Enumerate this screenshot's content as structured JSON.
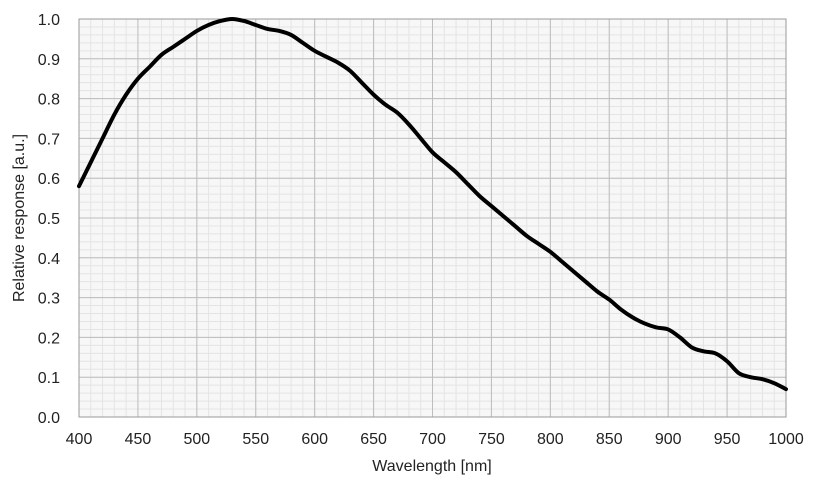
{
  "chart_data": {
    "type": "line",
    "title": "",
    "xlabel": "Wavelength [nm]",
    "ylabel": "Relative response [a.u.]",
    "xlim": [
      400,
      1000
    ],
    "ylim": [
      0.0,
      1.0
    ],
    "grid": true,
    "legend": "none",
    "x_ticks": [
      400,
      450,
      500,
      550,
      600,
      650,
      700,
      750,
      800,
      850,
      900,
      950,
      1000
    ],
    "x_tick_labels": [
      "400",
      "450",
      "500",
      "550",
      "600",
      "650",
      "700",
      "750",
      "800",
      "850",
      "900",
      "950",
      "1000"
    ],
    "y_ticks": [
      0.0,
      0.1,
      0.2,
      0.3,
      0.4,
      0.5,
      0.6,
      0.7,
      0.8,
      0.9,
      1.0
    ],
    "y_tick_labels": [
      "0.0",
      "0.1",
      "0.2",
      "0.3",
      "0.4",
      "0.5",
      "0.6",
      "0.7",
      "0.8",
      "0.9",
      "1.0"
    ],
    "line_color": "#000000",
    "series": [
      {
        "x": [
          400,
          410,
          420,
          430,
          440,
          450,
          460,
          470,
          480,
          490,
          500,
          510,
          520,
          530,
          540,
          550,
          560,
          570,
          580,
          590,
          600,
          610,
          620,
          630,
          640,
          650,
          660,
          670,
          680,
          690,
          700,
          710,
          720,
          730,
          740,
          750,
          760,
          770,
          780,
          790,
          800,
          810,
          820,
          830,
          840,
          850,
          860,
          870,
          880,
          890,
          900,
          910,
          920,
          930,
          940,
          950,
          960,
          970,
          980,
          990,
          1000
        ],
        "values": [
          0.58,
          0.64,
          0.7,
          0.76,
          0.81,
          0.85,
          0.88,
          0.91,
          0.93,
          0.95,
          0.97,
          0.985,
          0.995,
          1.0,
          0.995,
          0.985,
          0.975,
          0.97,
          0.96,
          0.94,
          0.92,
          0.905,
          0.89,
          0.87,
          0.84,
          0.81,
          0.785,
          0.765,
          0.735,
          0.7,
          0.665,
          0.64,
          0.615,
          0.585,
          0.555,
          0.53,
          0.505,
          0.48,
          0.455,
          0.435,
          0.415,
          0.39,
          0.365,
          0.34,
          0.315,
          0.295,
          0.27,
          0.25,
          0.235,
          0.225,
          0.22,
          0.2,
          0.175,
          0.165,
          0.16,
          0.14,
          0.11,
          0.1,
          0.095,
          0.085,
          0.07
        ]
      }
    ]
  }
}
